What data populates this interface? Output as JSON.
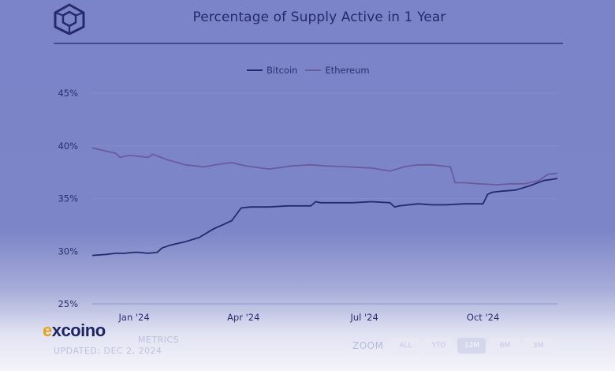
{
  "header": {
    "logo_icon": "cube-hexagon-icon",
    "title": "Percentage of Supply Active in 1 Year"
  },
  "legend": {
    "items": [
      {
        "label": "Bitcoin",
        "color": "#252a6e"
      },
      {
        "label": "Ethereum",
        "color": "#6a5b9e"
      }
    ]
  },
  "chart_data": {
    "type": "line",
    "title": "Percentage of Supply Active in 1 Year",
    "xlabel": "",
    "ylabel": "",
    "ylim": [
      25,
      45
    ],
    "y_ticks": [
      25,
      30,
      35,
      40,
      45
    ],
    "y_tick_labels": [
      "25%",
      "30%",
      "35%",
      "40%",
      "45%"
    ],
    "x_tick_labels": [
      "Jan '24",
      "Apr '24",
      "Jul '24",
      "Oct '24"
    ],
    "x_tick_positions": [
      0.09,
      0.325,
      0.585,
      0.84
    ],
    "grid": true,
    "legend_position": "top-center",
    "series": [
      {
        "name": "Bitcoin",
        "color": "#252a6e",
        "x": [
          0.0,
          0.03,
          0.05,
          0.07,
          0.09,
          0.1,
          0.12,
          0.14,
          0.15,
          0.17,
          0.2,
          0.23,
          0.26,
          0.28,
          0.3,
          0.31,
          0.32,
          0.34,
          0.38,
          0.42,
          0.47,
          0.48,
          0.49,
          0.53,
          0.56,
          0.6,
          0.64,
          0.65,
          0.66,
          0.7,
          0.73,
          0.76,
          0.8,
          0.84,
          0.85,
          0.86,
          0.88,
          0.91,
          0.94,
          0.97,
          1.0
        ],
        "y": [
          29.6,
          29.7,
          29.8,
          29.8,
          29.9,
          29.9,
          29.8,
          29.9,
          30.3,
          30.6,
          30.9,
          31.3,
          32.1,
          32.5,
          32.9,
          33.5,
          34.1,
          34.2,
          34.2,
          34.3,
          34.3,
          34.7,
          34.6,
          34.6,
          34.6,
          34.7,
          34.6,
          34.2,
          34.3,
          34.5,
          34.4,
          34.4,
          34.5,
          34.5,
          35.4,
          35.6,
          35.7,
          35.8,
          36.2,
          36.7,
          36.9
        ]
      },
      {
        "name": "Ethereum",
        "color": "#6a5b9e",
        "x": [
          0.0,
          0.02,
          0.05,
          0.06,
          0.08,
          0.1,
          0.12,
          0.13,
          0.16,
          0.2,
          0.24,
          0.28,
          0.3,
          0.33,
          0.38,
          0.43,
          0.47,
          0.5,
          0.55,
          0.6,
          0.64,
          0.67,
          0.7,
          0.73,
          0.77,
          0.78,
          0.8,
          0.83,
          0.87,
          0.9,
          0.93,
          0.96,
          0.98,
          1.0
        ],
        "y": [
          39.8,
          39.6,
          39.3,
          38.9,
          39.1,
          39.0,
          38.9,
          39.2,
          38.7,
          38.2,
          38.0,
          38.3,
          38.4,
          38.1,
          37.8,
          38.1,
          38.2,
          38.1,
          38.0,
          37.9,
          37.6,
          38.0,
          38.2,
          38.2,
          38.0,
          36.5,
          36.5,
          36.4,
          36.3,
          36.4,
          36.4,
          36.7,
          37.3,
          37.4
        ]
      }
    ]
  },
  "footer": {
    "brand_mark": "e",
    "brand_rest": "xcoino",
    "source_line1": "METRICS",
    "source_line2": "UPDATED: DEC 2, 2024",
    "zoom_label": "ZOOM",
    "zoom_buttons": [
      {
        "label": "ALL",
        "active": false
      },
      {
        "label": "YTD",
        "active": false
      },
      {
        "label": "12M",
        "active": true
      },
      {
        "label": "6M",
        "active": false
      },
      {
        "label": "3M",
        "active": false
      }
    ]
  }
}
